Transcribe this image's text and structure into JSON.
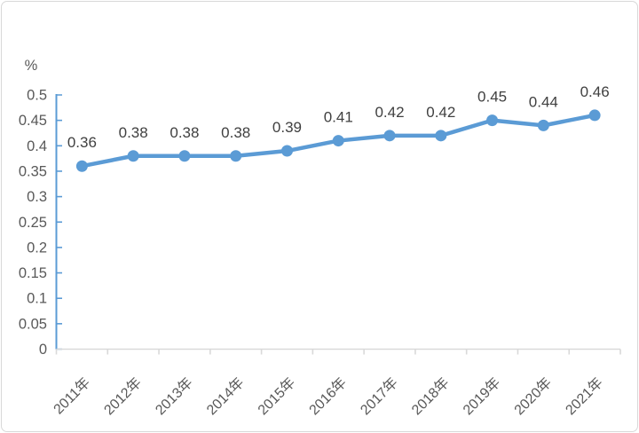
{
  "card": {
    "background": "#ffffff",
    "border_color": "#d8d8d8"
  },
  "chart_data": {
    "type": "line",
    "title": "",
    "xlabel": "",
    "ylabel": "%",
    "categories": [
      "2011年",
      "2012年",
      "2013年",
      "2014年",
      "2015年",
      "2016年",
      "2017年",
      "2018年",
      "2019年",
      "2020年",
      "2021年"
    ],
    "series": [
      {
        "name": "",
        "values": [
          0.36,
          0.38,
          0.38,
          0.38,
          0.39,
          0.41,
          0.42,
          0.42,
          0.45,
          0.44,
          0.46
        ]
      }
    ],
    "data_labels": [
      "0.36",
      "0.38",
      "0.38",
      "0.38",
      "0.39",
      "0.41",
      "0.42",
      "0.42",
      "0.45",
      "0.44",
      "0.46"
    ],
    "ylim": [
      0,
      0.5
    ],
    "y_tick_labels": [
      "0",
      "0.05",
      "0.1",
      "0.15",
      "0.2",
      "0.25",
      "0.3",
      "0.35",
      "0.4",
      "0.45",
      "0.5"
    ],
    "grid": false,
    "legend": "none",
    "x_labels_rotation_deg": -45,
    "colors": {
      "line": "#5B9BD5",
      "marker": "#5B9BD5",
      "y_axis": "#5B9BD5",
      "x_axis": "#D9D9D9",
      "tick_label": "#595959",
      "data_label": "#404040"
    }
  }
}
